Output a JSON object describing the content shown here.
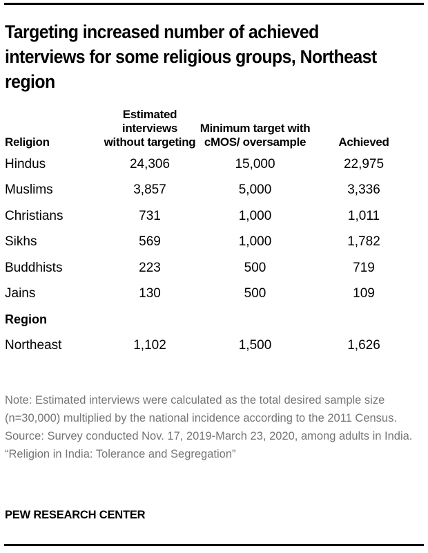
{
  "title": "Targeting increased number of achieved interviews for some religious groups, Northeast region",
  "table": {
    "headers": {
      "religion": "Religion",
      "estimated": "Estimated interviews without targeting",
      "minimum": "Minimum target with cMOS/ oversample",
      "achieved": "Achieved"
    },
    "rows": [
      {
        "label": "Hindus",
        "estimated": "24,306",
        "minimum": "15,000",
        "achieved": "22,975"
      },
      {
        "label": "Muslims",
        "estimated": "3,857",
        "minimum": "5,000",
        "achieved": "3,336"
      },
      {
        "label": "Christians",
        "estimated": "731",
        "minimum": "1,000",
        "achieved": "1,011"
      },
      {
        "label": "Sikhs",
        "estimated": "569",
        "minimum": "1,000",
        "achieved": "1,782"
      },
      {
        "label": "Buddhists",
        "estimated": "223",
        "minimum": "500",
        "achieved": "719"
      },
      {
        "label": "Jains",
        "estimated": "130",
        "minimum": "500",
        "achieved": "109"
      }
    ],
    "section_region": "Region",
    "region_rows": [
      {
        "label": "Northeast",
        "estimated": "1,102",
        "minimum": "1,500",
        "achieved": "1,626"
      }
    ]
  },
  "notes": {
    "note": "Note: Estimated interviews were calculated as the total desired sample size (n=30,000) multiplied by the national incidence according to the 2011 Census.",
    "source": "Source: Survey conducted Nov. 17, 2019-March 23, 2020, among adults in India.",
    "report": "“Religion in India: Tolerance and Segregation”"
  },
  "brand": "PEW RESEARCH CENTER",
  "chart_data": {
    "type": "table",
    "title": "Targeting increased number of achieved interviews for some religious groups, Northeast region",
    "columns": [
      "Religion",
      "Estimated interviews without targeting",
      "Minimum target with cMOS/ oversample",
      "Achieved"
    ],
    "rows": [
      {
        "group": "Religion",
        "label": "Hindus",
        "values": [
          24306,
          15000,
          22975
        ]
      },
      {
        "group": "Religion",
        "label": "Muslims",
        "values": [
          3857,
          5000,
          3336
        ]
      },
      {
        "group": "Religion",
        "label": "Christians",
        "values": [
          731,
          1000,
          1011
        ]
      },
      {
        "group": "Religion",
        "label": "Sikhs",
        "values": [
          569,
          1000,
          1782
        ]
      },
      {
        "group": "Religion",
        "label": "Buddhists",
        "values": [
          223,
          500,
          719
        ]
      },
      {
        "group": "Religion",
        "label": "Jains",
        "values": [
          130,
          500,
          109
        ]
      },
      {
        "group": "Region",
        "label": "Northeast",
        "values": [
          1102,
          1500,
          1626
        ]
      }
    ]
  }
}
